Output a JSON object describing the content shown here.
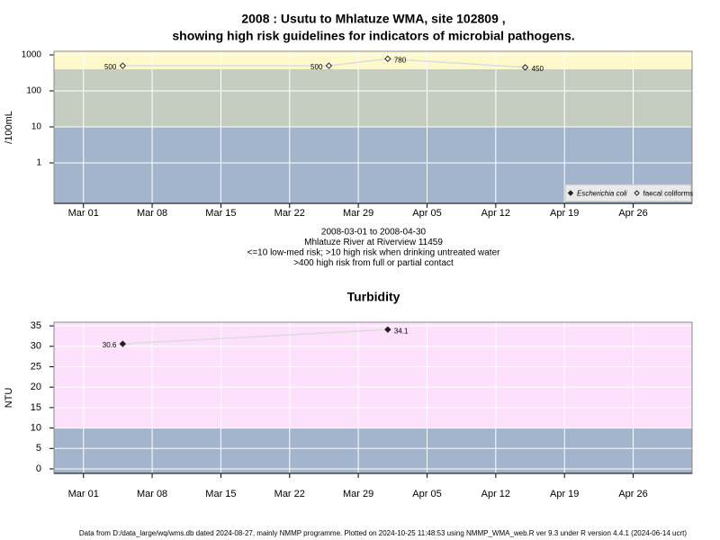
{
  "chart_data": [
    {
      "type": "line",
      "title": [
        "2008 : Usutu to Mhlatuze WMA, site 102809 ,",
        "showing high risk guidelines for indicators of microbial pathogens."
      ],
      "ylabel": "/100mL",
      "caption": [
        "2008-03-01 to 2008-04-30",
        "Mhlatuze River at Riverview 11459",
        "<=10 low-med risk; >10 high risk when drinking untreated water",
        ">400 high risk from full or partial contact"
      ],
      "log_scale": true,
      "grid": true,
      "xlim": [
        "Feb 27",
        "May 02"
      ],
      "xticks": [
        "Mar 01",
        "Mar 08",
        "Mar 15",
        "Mar 22",
        "Mar 29",
        "Apr 05",
        "Apr 12",
        "Apr 19",
        "Apr 26"
      ],
      "ylim": [
        0.075,
        1260
      ],
      "yticks": [
        1,
        10,
        100,
        1000
      ],
      "bands": [
        {
          "to": 10,
          "color": "#a3b5cc"
        },
        {
          "from": 10,
          "to": 400,
          "color": "#c5cdc1"
        },
        {
          "from": 400,
          "color": "#fff9cc"
        }
      ],
      "legend": "bottom-right",
      "series": [
        {
          "name": "Escherichia coli",
          "marker": "filled",
          "color": "#222222",
          "line_color": "#dcdcdc",
          "x": [],
          "values": []
        },
        {
          "name": "faecal coliforms",
          "marker": "open",
          "color": "#222222",
          "line_color": "#dcdcdc",
          "x": [
            "Mar 05",
            "Mar 26",
            "Apr 01",
            "Apr 15"
          ],
          "values": [
            500,
            500,
            780,
            450
          ]
        }
      ]
    },
    {
      "type": "line",
      "title": [
        "Turbidity"
      ],
      "ylabel": "NTU",
      "log_scale": false,
      "grid": true,
      "xlim": [
        "Feb 27",
        "May 02"
      ],
      "xticks": [
        "Mar 01",
        "Mar 08",
        "Mar 15",
        "Mar 22",
        "Mar 29",
        "Apr 05",
        "Apr 12",
        "Apr 19",
        "Apr 26"
      ],
      "ylim": [
        -1.1,
        35.9
      ],
      "yticks": [
        0,
        5,
        10,
        15,
        20,
        25,
        30,
        35
      ],
      "bands": [
        {
          "to": 10,
          "color": "#a3b5cc"
        },
        {
          "from": 10,
          "color": "#fde0fc"
        }
      ],
      "series": [
        {
          "marker": "filled",
          "color": "#222222",
          "line_color": "#dcdcdc",
          "x": [
            "Mar 05",
            "Apr 01"
          ],
          "values": [
            30.6,
            34.1
          ]
        }
      ]
    }
  ],
  "footer": "Data from D:/data_large/wq/wms.db dated 2024-08-27, mainly NMMP programme. Plotted on 2024-10-25 11:48:53 using NMMP_WMA_web.R ver 9.3 under R version 4.4.1 (2024-06-14 ucrt)"
}
